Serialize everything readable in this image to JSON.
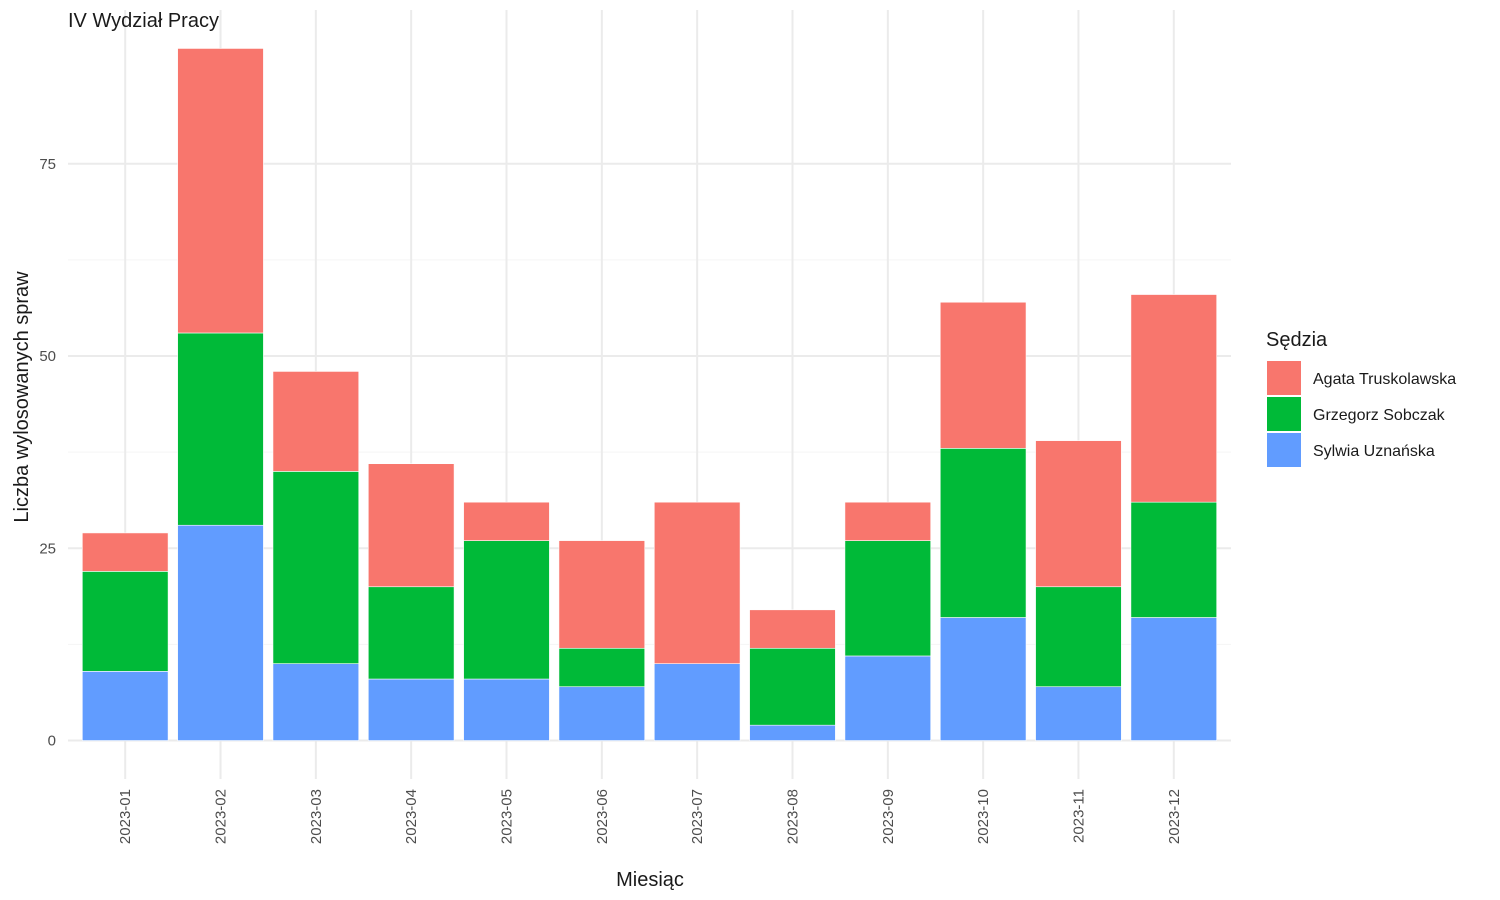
{
  "chart_data": {
    "type": "bar",
    "stacked": true,
    "title": "IV Wydział Pracy",
    "xlabel": "Miesiąc",
    "ylabel": "Liczba wylosowanych spraw",
    "ylim": [
      -5,
      95
    ],
    "yticks": [
      0,
      25,
      50,
      75
    ],
    "grid": true,
    "legend": {
      "title": "Sędzia",
      "placement": "right"
    },
    "categories": [
      "2023-01",
      "2023-02",
      "2023-03",
      "2023-04",
      "2023-05",
      "2023-06",
      "2023-07",
      "2023-08",
      "2023-09",
      "2023-10",
      "2023-11",
      "2023-12"
    ],
    "series": [
      {
        "name": "Sylwia Uznańska",
        "color": "#619CFF",
        "values": [
          9,
          28,
          10,
          8,
          8,
          7,
          10,
          2,
          11,
          16,
          7,
          16
        ]
      },
      {
        "name": "Grzegorz Sobczak",
        "color": "#00BA38",
        "values": [
          13,
          25,
          25,
          12,
          18,
          5,
          0,
          10,
          15,
          22,
          13,
          15
        ]
      },
      {
        "name": "Agata Truskolawska",
        "color": "#F8766D",
        "values": [
          5,
          37,
          13,
          16,
          5,
          14,
          21,
          5,
          5,
          19,
          19,
          27
        ]
      }
    ],
    "legend_order": [
      2,
      1,
      0
    ]
  }
}
